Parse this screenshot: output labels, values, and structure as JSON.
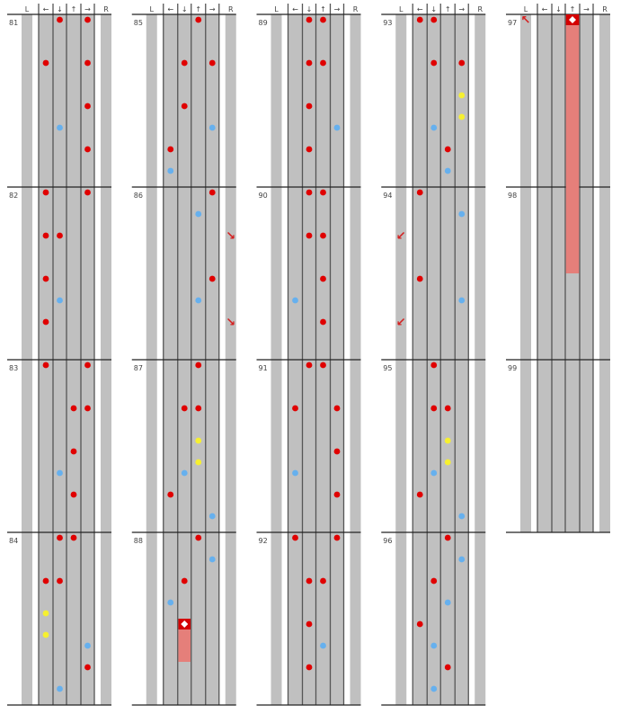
{
  "chart_data": {
    "type": "step-chart",
    "lane_labels": [
      "L",
      "←",
      "↓",
      "↑",
      "→",
      "R"
    ],
    "rows_per_measure": 16,
    "colors": {
      "quarter": "#e00000",
      "eighth": "#66b0ee",
      "sixteenth": "#f6f030",
      "hold_head": "#d40000",
      "hold_body": "#e57f7a",
      "special_arrow": "#d42020",
      "lane": "#c0c0c0",
      "lane_line": "#555555"
    },
    "measures": [
      {
        "number": "81",
        "notes": [
          [
            0,
            2
          ],
          [
            0,
            4
          ],
          [
            4,
            1
          ],
          [
            4,
            4
          ],
          [
            8,
            4
          ],
          [
            10,
            2
          ],
          [
            12,
            4
          ]
        ]
      },
      {
        "number": "82",
        "notes": [
          [
            0,
            1
          ],
          [
            0,
            4
          ],
          [
            4,
            1
          ],
          [
            4,
            2
          ],
          [
            8,
            1
          ],
          [
            10,
            2
          ],
          [
            12,
            1
          ]
        ]
      },
      {
        "number": "83",
        "notes": [
          [
            0,
            1
          ],
          [
            0,
            4
          ],
          [
            4,
            3
          ],
          [
            4,
            4
          ],
          [
            8,
            3
          ],
          [
            10,
            2
          ],
          [
            12,
            3
          ]
        ]
      },
      {
        "number": "84",
        "notes": [
          [
            0,
            2
          ],
          [
            0,
            3
          ],
          [
            4,
            1
          ],
          [
            4,
            2
          ],
          [
            7,
            1
          ],
          [
            9,
            1
          ],
          [
            10,
            4
          ],
          [
            12,
            4
          ],
          [
            14,
            2
          ]
        ]
      },
      {
        "number": "85",
        "notes": [
          [
            0,
            3
          ],
          [
            4,
            2
          ],
          [
            4,
            4
          ],
          [
            8,
            2
          ],
          [
            10,
            4
          ],
          [
            12,
            1
          ],
          [
            14,
            1
          ]
        ]
      },
      {
        "number": "86",
        "notes": [
          [
            0,
            4
          ],
          [
            2,
            3
          ],
          [
            8,
            4
          ],
          [
            10,
            3
          ]
        ],
        "specials": [
          [
            4,
            5,
            "↘"
          ],
          [
            12,
            5,
            "↘"
          ]
        ]
      },
      {
        "number": "87",
        "notes": [
          [
            0,
            3
          ],
          [
            4,
            2
          ],
          [
            4,
            3
          ],
          [
            7,
            3
          ],
          [
            9,
            3
          ],
          [
            10,
            2
          ],
          [
            12,
            1
          ],
          [
            14,
            4
          ]
        ]
      },
      {
        "number": "88",
        "notes": [
          [
            0,
            3
          ],
          [
            2,
            4
          ],
          [
            4,
            2
          ],
          [
            6,
            1
          ]
        ]
      },
      {
        "number": "89",
        "notes": [
          [
            0,
            2
          ],
          [
            0,
            3
          ],
          [
            4,
            2
          ],
          [
            4,
            3
          ],
          [
            8,
            2
          ],
          [
            10,
            4
          ],
          [
            12,
            2
          ]
        ]
      },
      {
        "number": "90",
        "notes": [
          [
            0,
            2
          ],
          [
            0,
            3
          ],
          [
            4,
            2
          ],
          [
            4,
            3
          ],
          [
            8,
            3
          ],
          [
            10,
            1
          ],
          [
            12,
            3
          ]
        ]
      },
      {
        "number": "91",
        "notes": [
          [
            0,
            2
          ],
          [
            0,
            3
          ],
          [
            4,
            1
          ],
          [
            4,
            4
          ],
          [
            8,
            4
          ],
          [
            10,
            1
          ],
          [
            12,
            4
          ]
        ]
      },
      {
        "number": "92",
        "notes": [
          [
            0,
            1
          ],
          [
            0,
            4
          ],
          [
            4,
            2
          ],
          [
            4,
            3
          ],
          [
            8,
            2
          ],
          [
            10,
            3
          ],
          [
            12,
            2
          ]
        ]
      },
      {
        "number": "93",
        "notes": [
          [
            0,
            1
          ],
          [
            0,
            2
          ],
          [
            4,
            2
          ],
          [
            4,
            4
          ],
          [
            7,
            4
          ],
          [
            9,
            4
          ],
          [
            10,
            2
          ],
          [
            12,
            3
          ],
          [
            14,
            3
          ]
        ]
      },
      {
        "number": "94",
        "notes": [
          [
            0,
            1
          ],
          [
            2,
            4
          ],
          [
            8,
            1
          ],
          [
            10,
            4
          ]
        ],
        "specials": [
          [
            4,
            0,
            "↙"
          ],
          [
            12,
            0,
            "↙"
          ]
        ]
      },
      {
        "number": "95",
        "notes": [
          [
            0,
            2
          ],
          [
            4,
            2
          ],
          [
            4,
            3
          ],
          [
            7,
            3
          ],
          [
            9,
            3
          ],
          [
            10,
            2
          ],
          [
            12,
            1
          ],
          [
            14,
            4
          ]
        ]
      },
      {
        "number": "96",
        "notes": [
          [
            0,
            3
          ],
          [
            2,
            4
          ],
          [
            4,
            2
          ],
          [
            6,
            3
          ],
          [
            8,
            1
          ],
          [
            10,
            2
          ],
          [
            12,
            3
          ],
          [
            14,
            2
          ]
        ]
      },
      {
        "number": "97",
        "notes": [],
        "specials": [
          [
            0,
            0,
            "↖"
          ]
        ]
      },
      {
        "number": "98",
        "notes": []
      },
      {
        "number": "99",
        "notes": []
      }
    ],
    "holds": [
      {
        "lane": 2,
        "start": [
          "88",
          8
        ],
        "end": [
          "88",
          12
        ]
      },
      {
        "lane": 3,
        "start": [
          "97",
          0
        ],
        "end": [
          "98",
          8
        ]
      }
    ]
  }
}
